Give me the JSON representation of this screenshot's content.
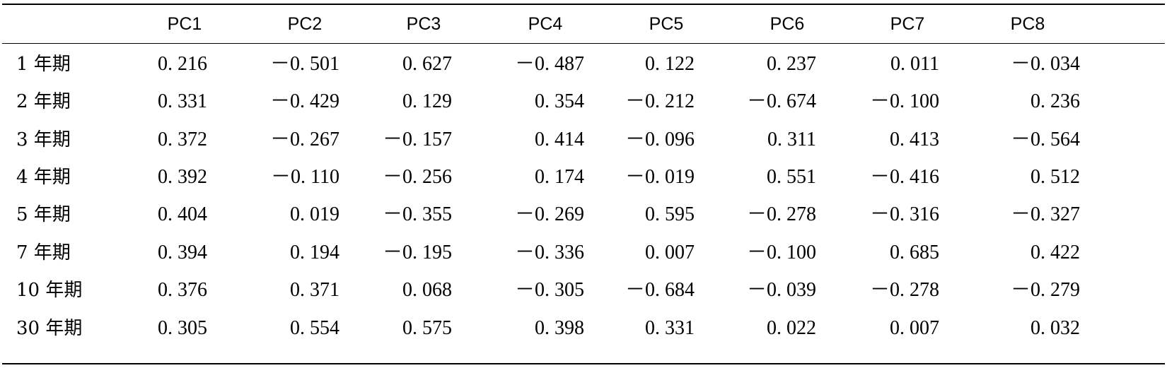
{
  "table": {
    "columns": [
      "PC1",
      "PC2",
      "PC3",
      "PC4",
      "PC5",
      "PC6",
      "PC7",
      "PC8"
    ],
    "rows": [
      {
        "label": "1 年期",
        "values": [
          "0. 216",
          "－0. 501",
          "0. 627",
          "－0. 487",
          "0. 122",
          "0. 237",
          "0. 011",
          "－0. 034"
        ]
      },
      {
        "label": "2 年期",
        "values": [
          "0. 331",
          "－0. 429",
          "0. 129",
          "0. 354",
          "－0. 212",
          "－0. 674",
          "－0. 100",
          "0. 236"
        ]
      },
      {
        "label": "3 年期",
        "values": [
          "0. 372",
          "－0. 267",
          "－0. 157",
          "0. 414",
          "－0. 096",
          "0. 311",
          "0. 413",
          "－0. 564"
        ]
      },
      {
        "label": "4 年期",
        "values": [
          "0. 392",
          "－0. 110",
          "－0. 256",
          "0. 174",
          "－0. 019",
          "0. 551",
          "－0. 416",
          "0. 512"
        ]
      },
      {
        "label": "5 年期",
        "values": [
          "0. 404",
          "0. 019",
          "－0. 355",
          "－0. 269",
          "0. 595",
          "－0. 278",
          "－0. 316",
          "－0. 327"
        ]
      },
      {
        "label": "7 年期",
        "values": [
          "0. 394",
          "0. 194",
          "－0. 195",
          "－0. 336",
          "0. 007",
          "－0. 100",
          "0. 685",
          "0. 422"
        ]
      },
      {
        "label": "10 年期",
        "values": [
          "0. 376",
          "0. 371",
          "0. 068",
          "－0. 305",
          "－0. 684",
          "－0. 039",
          "－0. 278",
          "－0. 279"
        ]
      },
      {
        "label": "30 年期",
        "values": [
          "0. 305",
          "0. 554",
          "0. 575",
          "0. 398",
          "0. 331",
          "0. 022",
          "0. 007",
          "0. 032"
        ]
      }
    ]
  }
}
